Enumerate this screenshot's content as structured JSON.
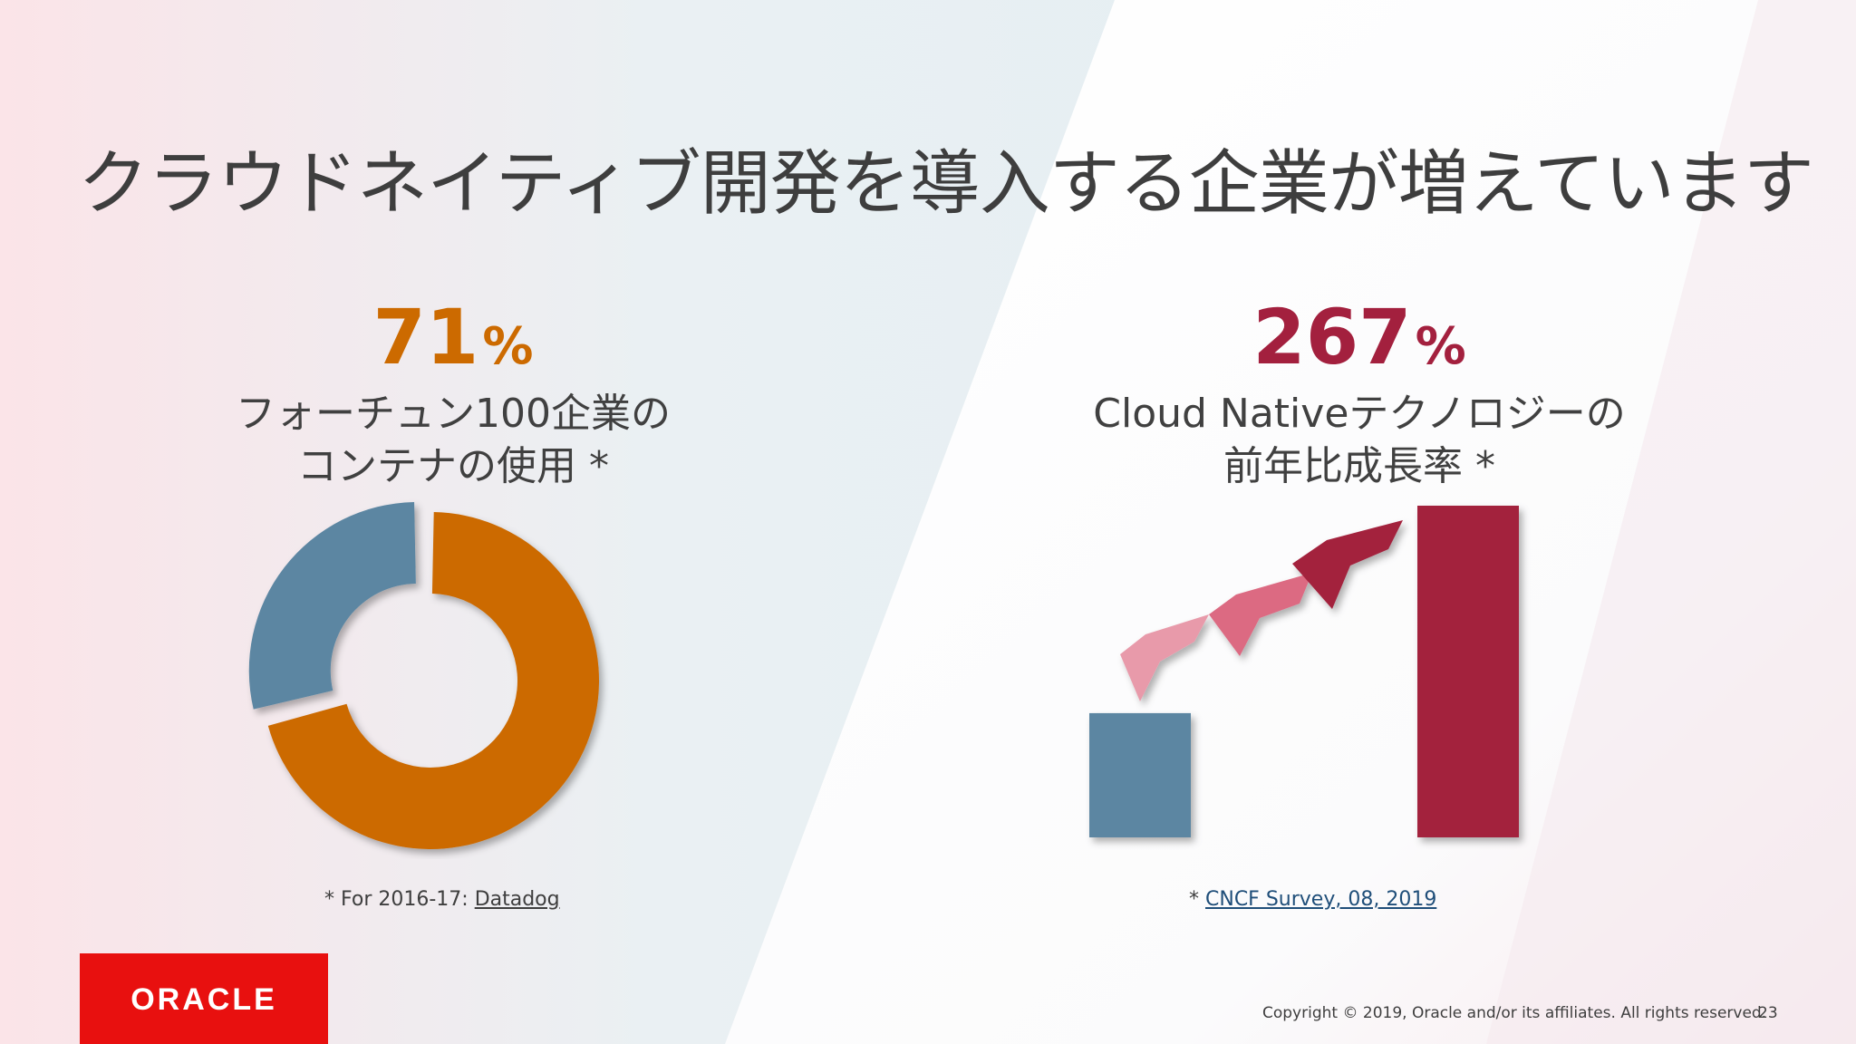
{
  "slide": {
    "title": "クラウドネイティブ開発を導入する企業が増えています",
    "page_number": "23",
    "copyright": "Copyright © 2019, Oracle and/or its affiliates. All rights reserved."
  },
  "left_panel": {
    "stat_value": "71",
    "stat_unit": "%",
    "caption_line1": "フォーチュン100企業の",
    "caption_line2": "コンテナの使用 *",
    "note_prefix": "* For 2016-17: ",
    "note_link": "Datadog"
  },
  "right_panel": {
    "stat_value": "267",
    "stat_unit": "%",
    "caption_line1": "Cloud Nativeテクノロジーの",
    "caption_line2": "前年比成長率 *",
    "note_prefix": "* ",
    "note_link": "CNCF Survey, 08, 2019"
  },
  "logo": {
    "text": "ORACLE"
  },
  "colors": {
    "orange": "#cc6a00",
    "steel_blue": "#5b86a2",
    "crimson": "#a3203e",
    "pink_light": "#e89aaa",
    "pink_mid": "#dc6a82",
    "oracle_red": "#e8100f"
  },
  "chart_data": [
    {
      "type": "pie",
      "categories": [
        "",
        ""
      ],
      "values": [
        71,
        29
      ]
    },
    {
      "type": "bar",
      "categories": [
        "",
        ""
      ],
      "values": [
        100,
        267
      ]
    }
  ]
}
